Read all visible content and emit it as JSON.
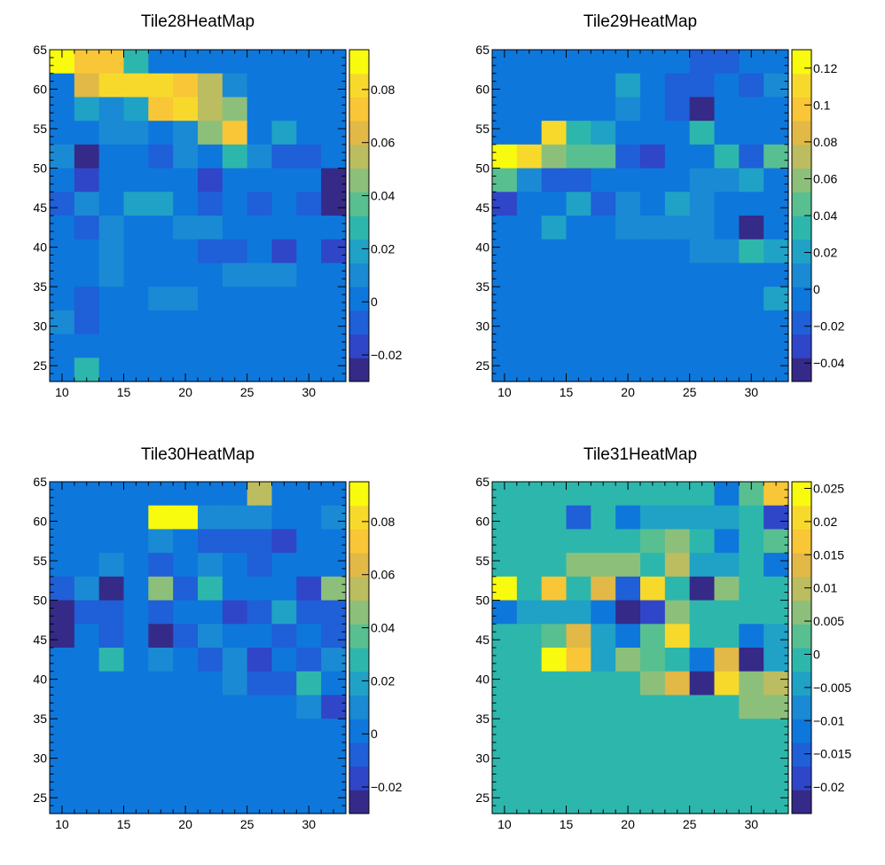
{
  "chart_data": [
    {
      "type": "heatmap",
      "title": "Tile28HeatMap",
      "x_ticks": [
        10,
        15,
        20,
        25,
        30
      ],
      "y_ticks": [
        25,
        30,
        35,
        40,
        45,
        50,
        55,
        60,
        65
      ],
      "xlim": [
        9,
        33
      ],
      "ylim": [
        23,
        65
      ],
      "x_bins": [
        9,
        11,
        13,
        15,
        17,
        19,
        21,
        23,
        25,
        27,
        29,
        31,
        33
      ],
      "y_bins": [
        23,
        26,
        29,
        32,
        35,
        38,
        41,
        44,
        47,
        50,
        53,
        56,
        59,
        62,
        65
      ],
      "colorbar_ticks": [
        -0.02,
        0,
        0.02,
        0.04,
        0.06,
        0.08
      ],
      "colorbar_range": [
        -0.03,
        0.095
      ],
      "values": [
        [
          0.094,
          0.074,
          0.07,
          0.025,
          0.002,
          0.002,
          0.002,
          0.002,
          0.002,
          0.002,
          0.002,
          0.002
        ],
        [
          0.002,
          0.06,
          0.082,
          0.082,
          0.082,
          0.074,
          0.055,
          0.008,
          0.002,
          0.002,
          0.002,
          0.002
        ],
        [
          0.002,
          0.018,
          0.008,
          0.022,
          0.072,
          0.082,
          0.058,
          0.05,
          0.002,
          0.002,
          0.002,
          0.002
        ],
        [
          -0.002,
          0.002,
          0.012,
          0.01,
          0.002,
          0.012,
          0.044,
          0.07,
          0.002,
          0.022,
          0.002,
          0.002
        ],
        [
          0.012,
          -0.028,
          -0.002,
          -0.002,
          -0.006,
          0.012,
          0.0,
          0.025,
          0.012,
          -0.006,
          -0.006,
          0.002
        ],
        [
          0.002,
          -0.015,
          0.002,
          0.002,
          0.002,
          0.002,
          -0.018,
          0.002,
          0.002,
          0.002,
          0.0,
          -0.028
        ],
        [
          -0.012,
          0.008,
          0.002,
          0.016,
          0.016,
          0.0,
          -0.006,
          0.002,
          -0.006,
          0.002,
          -0.012,
          -0.022
        ],
        [
          0.002,
          -0.012,
          0.012,
          0.002,
          0.002,
          0.014,
          0.014,
          0.002,
          0.002,
          0.002,
          0.002,
          0.002
        ],
        [
          0.002,
          0.002,
          0.012,
          0.002,
          0.002,
          0.002,
          -0.012,
          -0.006,
          0.002,
          -0.016,
          0.002,
          -0.02
        ],
        [
          0.002,
          0.002,
          0.008,
          0.002,
          0.002,
          0.002,
          0.002,
          0.012,
          0.012,
          0.012,
          0.002,
          0.002
        ],
        [
          0.002,
          -0.012,
          0.002,
          0.002,
          0.006,
          0.006,
          0.002,
          0.002,
          0.002,
          0.002,
          0.002,
          0.002
        ],
        [
          0.008,
          -0.012,
          0.002,
          0.002,
          0.002,
          0.002,
          0.002,
          0.002,
          0.002,
          0.002,
          0.002,
          0.002
        ],
        [
          0.002,
          0.002,
          0.002,
          0.002,
          0.002,
          0.002,
          0.002,
          0.002,
          0.002,
          0.002,
          0.002,
          0.002
        ],
        [
          0.002,
          0.024,
          0.002,
          0.002,
          0.002,
          0.002,
          0.002,
          0.002,
          0.002,
          0.002,
          0.002,
          0.002
        ]
      ]
    },
    {
      "type": "heatmap",
      "title": "Tile29HeatMap",
      "x_ticks": [
        10,
        15,
        20,
        25,
        30
      ],
      "y_ticks": [
        25,
        30,
        35,
        40,
        45,
        50,
        55,
        60,
        65
      ],
      "xlim": [
        9,
        33
      ],
      "ylim": [
        23,
        65
      ],
      "x_bins": [
        9,
        11,
        13,
        15,
        17,
        19,
        21,
        23,
        25,
        27,
        29,
        31,
        33
      ],
      "y_bins": [
        23,
        26,
        29,
        32,
        35,
        38,
        41,
        44,
        47,
        50,
        53,
        56,
        59,
        62,
        65
      ],
      "colorbar_ticks": [
        -0.04,
        -0.02,
        0,
        0.02,
        0.04,
        0.06,
        0.08,
        0.1,
        0.12
      ],
      "colorbar_range": [
        -0.05,
        0.13
      ],
      "values": [
        [
          0.0,
          0.0,
          0.0,
          0.0,
          0.0,
          0.0,
          0.0,
          0.0,
          -0.02,
          -0.02,
          0.0,
          0.0
        ],
        [
          0.0,
          0.0,
          0.0,
          0.0,
          -0.01,
          0.02,
          -0.005,
          -0.02,
          -0.02,
          -0.01,
          -0.02,
          0.005
        ],
        [
          0.0,
          0.0,
          0.0,
          0.0,
          0.0,
          0.005,
          -0.01,
          -0.02,
          -0.045,
          -0.005,
          0.0,
          -0.005
        ],
        [
          0.0,
          0.0,
          0.105,
          0.03,
          0.025,
          0.0,
          -0.01,
          -0.01,
          0.03,
          -0.005,
          -0.01,
          -0.005
        ],
        [
          0.13,
          0.11,
          0.055,
          0.045,
          0.045,
          -0.015,
          -0.03,
          -0.005,
          -0.005,
          0.03,
          -0.02,
          0.04
        ],
        [
          0.05,
          0.01,
          -0.015,
          -0.02,
          0.0,
          -0.01,
          -0.01,
          -0.005,
          0.01,
          0.01,
          0.015,
          0.0
        ],
        [
          -0.03,
          0.0,
          -0.01,
          0.025,
          -0.02,
          0.005,
          0.0,
          0.015,
          0.005,
          -0.005,
          0.0,
          0.0
        ],
        [
          0.0,
          0.0,
          0.015,
          0.0,
          0.0,
          0.01,
          0.005,
          0.005,
          0.005,
          0.0,
          -0.045,
          0.0
        ],
        [
          0.0,
          0.0,
          0.0,
          0.0,
          0.0,
          0.0,
          -0.005,
          -0.005,
          0.005,
          0.005,
          0.03,
          0.015
        ],
        [
          0.0,
          0.0,
          0.0,
          0.0,
          0.0,
          0.0,
          0.0,
          0.0,
          0.0,
          0.0,
          0.0,
          0.0
        ],
        [
          0.0,
          0.0,
          0.0,
          0.0,
          0.0,
          0.0,
          0.0,
          0.0,
          0.0,
          0.0,
          -0.005,
          0.02
        ],
        [
          0.0,
          0.0,
          0.0,
          0.0,
          0.0,
          0.0,
          0.0,
          0.0,
          0.0,
          0.0,
          0.0,
          0.0
        ],
        [
          0.0,
          0.0,
          0.0,
          0.0,
          0.0,
          0.0,
          0.0,
          0.0,
          0.0,
          0.0,
          0.0,
          0.0
        ],
        [
          0.0,
          0.0,
          0.0,
          0.0,
          0.0,
          0.0,
          0.0,
          0.0,
          0.0,
          0.0,
          0.0,
          0.0
        ]
      ]
    },
    {
      "type": "heatmap",
      "title": "Tile30HeatMap",
      "x_ticks": [
        10,
        15,
        20,
        25,
        30
      ],
      "y_ticks": [
        25,
        30,
        35,
        40,
        45,
        50,
        55,
        60,
        65
      ],
      "xlim": [
        9,
        33
      ],
      "ylim": [
        23,
        65
      ],
      "x_bins": [
        9,
        11,
        13,
        15,
        17,
        19,
        21,
        23,
        25,
        27,
        29,
        31,
        33
      ],
      "y_bins": [
        23,
        26,
        29,
        32,
        35,
        38,
        41,
        44,
        47,
        50,
        53,
        56,
        59,
        62,
        65
      ],
      "colorbar_ticks": [
        -0.02,
        0,
        0.02,
        0.04,
        0.06,
        0.08
      ],
      "colorbar_range": [
        -0.03,
        0.095
      ],
      "values": [
        [
          0.002,
          0.002,
          0.002,
          0.002,
          0.002,
          0.002,
          0.002,
          0.002,
          0.058,
          0.002,
          0.002,
          0.002
        ],
        [
          0.002,
          0.002,
          0.002,
          0.002,
          0.094,
          0.094,
          0.012,
          0.012,
          0.014,
          0.002,
          -0.002,
          0.012
        ],
        [
          0.002,
          0.002,
          0.002,
          0.002,
          0.012,
          0.002,
          -0.01,
          -0.006,
          -0.006,
          -0.016,
          0.002,
          0.002
        ],
        [
          0.002,
          0.002,
          0.012,
          0.002,
          -0.012,
          0.002,
          0.008,
          0.002,
          -0.012,
          0.002,
          0.002,
          0.002
        ],
        [
          -0.012,
          0.012,
          -0.028,
          0.002,
          0.046,
          -0.012,
          0.026,
          0.002,
          0.002,
          0.002,
          -0.018,
          0.046
        ],
        [
          -0.028,
          -0.006,
          -0.012,
          0.002,
          -0.012,
          0.002,
          0.002,
          -0.018,
          -0.006,
          0.016,
          -0.012,
          -0.012
        ],
        [
          -0.022,
          0.002,
          -0.006,
          0.002,
          -0.028,
          -0.006,
          0.012,
          0.002,
          0.002,
          -0.006,
          0.002,
          -0.012
        ],
        [
          0.002,
          0.002,
          0.03,
          0.002,
          0.014,
          0.002,
          -0.006,
          0.014,
          -0.018,
          0.002,
          -0.006,
          0.014
        ],
        [
          0.002,
          0.002,
          0.002,
          0.002,
          0.002,
          0.002,
          0.002,
          0.012,
          -0.012,
          -0.006,
          0.026,
          0.002
        ],
        [
          0.002,
          0.002,
          0.002,
          0.002,
          0.002,
          0.002,
          0.002,
          0.002,
          0.002,
          0.002,
          0.014,
          -0.02
        ],
        [
          0.002,
          0.002,
          0.002,
          0.002,
          0.002,
          0.002,
          0.002,
          0.002,
          0.002,
          0.002,
          0.002,
          0.002
        ],
        [
          0.002,
          0.002,
          0.002,
          0.002,
          0.002,
          0.002,
          0.002,
          0.002,
          0.002,
          0.002,
          0.002,
          0.002
        ],
        [
          0.002,
          0.002,
          0.002,
          0.002,
          0.002,
          0.002,
          0.002,
          0.002,
          0.002,
          0.002,
          0.002,
          0.002
        ],
        [
          0.002,
          0.002,
          0.002,
          0.002,
          0.002,
          0.002,
          0.002,
          0.002,
          0.002,
          0.002,
          0.002,
          0.002
        ]
      ]
    },
    {
      "type": "heatmap",
      "title": "Tile31HeatMap",
      "x_ticks": [
        10,
        15,
        20,
        25,
        30
      ],
      "y_ticks": [
        25,
        30,
        35,
        40,
        45,
        50,
        55,
        60,
        65
      ],
      "xlim": [
        9,
        33
      ],
      "ylim": [
        23,
        65
      ],
      "x_bins": [
        9,
        11,
        13,
        15,
        17,
        19,
        21,
        23,
        25,
        27,
        29,
        31,
        33
      ],
      "y_bins": [
        23,
        26,
        29,
        32,
        35,
        38,
        41,
        44,
        47,
        50,
        53,
        56,
        59,
        62,
        65
      ],
      "colorbar_ticks": [
        -0.02,
        -0.015,
        -0.01,
        -0.005,
        0,
        0.005,
        0.01,
        0.015,
        0.02,
        0.025
      ],
      "colorbar_range": [
        -0.024,
        0.026
      ],
      "values": [
        [
          0.0,
          0.0,
          0.0,
          0.0,
          0.0,
          0.0,
          0.0,
          0.0,
          -0.002,
          -0.01,
          0.004,
          0.018
        ],
        [
          0.0,
          0.0,
          0.0,
          -0.014,
          0.0,
          -0.01,
          -0.004,
          -0.004,
          -0.006,
          -0.004,
          0.0,
          -0.02
        ],
        [
          0.0,
          0.0,
          0.0,
          0.0,
          -0.002,
          0.0,
          0.004,
          0.008,
          -0.002,
          -0.012,
          0.0,
          0.004
        ],
        [
          0.0,
          0.0,
          0.0,
          0.006,
          0.006,
          0.006,
          0.0,
          0.01,
          -0.004,
          -0.006,
          0.0,
          -0.012
        ],
        [
          0.026,
          0.0,
          0.016,
          -0.002,
          0.014,
          -0.014,
          0.02,
          -0.002,
          -0.022,
          0.006,
          -0.002,
          0.0
        ],
        [
          -0.01,
          -0.006,
          -0.004,
          -0.006,
          -0.012,
          -0.024,
          -0.018,
          0.006,
          -0.002,
          -0.002,
          -0.002,
          0.0
        ],
        [
          0.0,
          -0.002,
          0.004,
          0.012,
          -0.006,
          -0.012,
          0.004,
          0.02,
          0.0,
          0.0,
          -0.012,
          -0.004
        ],
        [
          0.0,
          0.0,
          0.026,
          0.018,
          -0.004,
          0.006,
          0.004,
          -0.002,
          -0.012,
          0.012,
          -0.022,
          -0.006
        ],
        [
          0.0,
          0.0,
          0.0,
          0.0,
          0.0,
          0.0,
          0.006,
          0.012,
          -0.024,
          0.02,
          0.008,
          0.01
        ],
        [
          0.0,
          0.0,
          0.0,
          0.0,
          0.0,
          0.0,
          0.0,
          0.0,
          0.0,
          0.0,
          0.008,
          0.008
        ],
        [
          0.0,
          0.0,
          0.0,
          0.0,
          0.0,
          0.0,
          0.0,
          0.0,
          0.0,
          0.0,
          0.0,
          0.0
        ],
        [
          0.0,
          0.0,
          0.0,
          0.0,
          0.0,
          0.0,
          0.0,
          0.0,
          0.0,
          0.0,
          0.0,
          0.0
        ],
        [
          0.0,
          0.0,
          0.0,
          0.0,
          0.0,
          0.0,
          0.0,
          0.0,
          0.0,
          0.0,
          0.0,
          0.0
        ],
        [
          0.0,
          0.0,
          0.0,
          0.0,
          0.0,
          0.0,
          0.0,
          0.0,
          0.0,
          0.0,
          0.0,
          0.0
        ]
      ]
    }
  ],
  "palette": [
    "#352a87",
    "#2f46c9",
    "#1f5fd7",
    "#0e77dc",
    "#1a8ad4",
    "#1fa2c6",
    "#2db7ac",
    "#58bf90",
    "#8cc07a",
    "#bcbc60",
    "#e2b846",
    "#f8c636",
    "#f7d92c",
    "#f9fb0e"
  ]
}
